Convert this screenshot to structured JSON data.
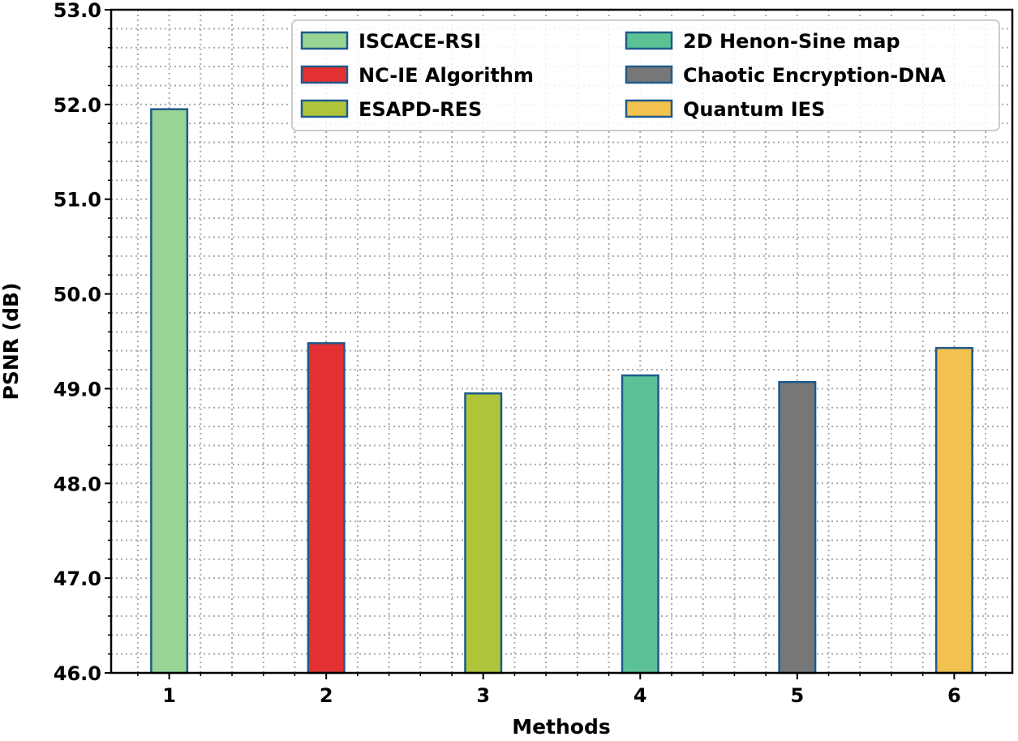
{
  "chart_data": {
    "type": "bar",
    "title": "",
    "xlabel": "Methods",
    "ylabel": "PSNR (dB)",
    "categories": [
      "1",
      "2",
      "3",
      "4",
      "5",
      "6"
    ],
    "ylim": [
      46.0,
      53.0
    ],
    "xlim": [
      0.63,
      6.37
    ],
    "yticks": [
      "46.0",
      "47.0",
      "48.0",
      "49.0",
      "50.0",
      "51.0",
      "52.0",
      "53.0"
    ],
    "grid": "on, dotted, major and minor",
    "legend_placement": "top-right, 2 columns",
    "series": [
      {
        "name": "ISCACE-RSI",
        "x": 1,
        "value": 51.95,
        "color": "#98d594"
      },
      {
        "name": "NC-IE Algorithm",
        "x": 2,
        "value": 49.48,
        "color": "#e33032"
      },
      {
        "name": "ESAPD-RES",
        "x": 3,
        "value": 48.95,
        "color": "#b0c43a"
      },
      {
        "name": "2D Henon-Sine map",
        "x": 4,
        "value": 49.14,
        "color": "#5cc296"
      },
      {
        "name": "Chaotic Encryption-DNA",
        "x": 5,
        "value": 49.07,
        "color": "#777777"
      },
      {
        "name": "Quantum IES",
        "x": 6,
        "value": 49.43,
        "color": "#f2c14e"
      }
    ],
    "edge_color": "#1f5a8a"
  }
}
